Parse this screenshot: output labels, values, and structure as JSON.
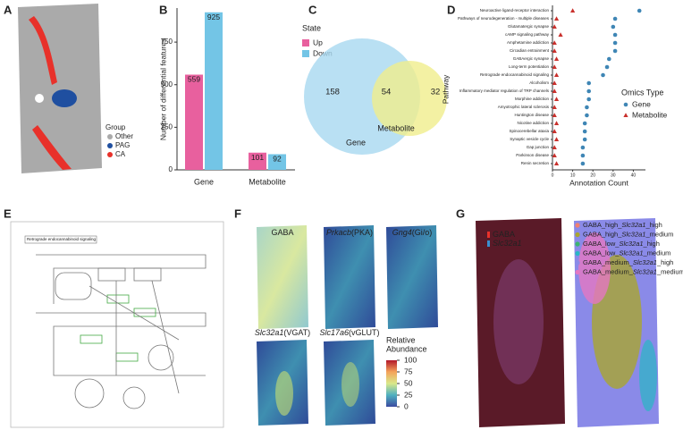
{
  "panel_labels": [
    "A",
    "B",
    "C",
    "D",
    "E",
    "F",
    "G"
  ],
  "chart_data": [
    {
      "type": "bar",
      "ylabel": "Number of differential features",
      "categories": [
        "Gene",
        "Metabolite"
      ],
      "legend_title": "State",
      "series": [
        {
          "name": "Up",
          "color": "#e8609e",
          "values": [
            559,
            101
          ]
        },
        {
          "name": "Down",
          "color": "#73c5e6",
          "values": [
            925,
            92
          ]
        }
      ],
      "ylim": [
        0,
        950
      ],
      "yticks": [
        0,
        250,
        500,
        750
      ]
    },
    {
      "type": "venn",
      "sets": [
        {
          "name": "Gene",
          "color": "#a8d8f0",
          "value": 158
        },
        {
          "name": "Metabolite",
          "color": "#f0ee8c",
          "value": 32
        }
      ],
      "intersection": 54
    },
    {
      "type": "dot",
      "xlabel": "Annotation Count",
      "ylabel": "Pathway",
      "legend_title": "Omics Type",
      "categories": [
        "Neuroactive ligand-receptor interaction",
        "Pathways of neurodegeneration - multiple diseases",
        "Glutamatergic synapse",
        "cAMP signaling pathway",
        "Amphetamine addiction",
        "Circadian entrainment",
        "GABAergic synapse",
        "Long-term potentiation",
        "Retrograde endocannabinoid signaling",
        "Alcoholism",
        "Inflammatory mediator regulation of TRP channels",
        "Morphine addiction",
        "Amyotrophic lateral sclerosis",
        "Huntington disease",
        "Nicotine addiction",
        "Spinocerebellar ataxia",
        "Synaptic vesicle cycle",
        "Gap junction",
        "Parkinson disease",
        "Renin secretion"
      ],
      "series": [
        {
          "name": "Gene",
          "color": "#3f86b5",
          "marker": "circle",
          "values": [
            43,
            31,
            30,
            31,
            31,
            31,
            28,
            27,
            25,
            18,
            18,
            18,
            17,
            17,
            16,
            16,
            16,
            15,
            15,
            15
          ]
        },
        {
          "name": "Metabolite",
          "color": "#c9302c",
          "marker": "triangle",
          "values": [
            10,
            2,
            1,
            4,
            1,
            1,
            2,
            1,
            2,
            1,
            1,
            2,
            1,
            1,
            2,
            1,
            2,
            1,
            1,
            2
          ]
        }
      ],
      "xlim": [
        0,
        46
      ],
      "xticks": [
        0,
        10,
        20,
        30,
        40
      ]
    }
  ],
  "panel_a": {
    "legend_title": "Group",
    "groups": [
      {
        "name": "Other",
        "color": "#aaaaaa"
      },
      {
        "name": "PAG",
        "color": "#1f4fa0"
      },
      {
        "name": "CA",
        "color": "#e8312a"
      }
    ]
  },
  "panel_e": {
    "title": "Retrograde endocannabinoid signaling"
  },
  "panel_f": {
    "maps": [
      {
        "label": "GABA"
      },
      {
        "gene": "Prkacb",
        "label": "(PKA)"
      },
      {
        "gene": "Gng4",
        "label": "(Gi/o)"
      },
      {
        "gene": "Slc32a1",
        "label": "(VGAT)"
      },
      {
        "gene": "Slc17a6",
        "label": "(vGLUT)"
      }
    ],
    "colorbar": {
      "title": [
        "Relative",
        "Abundance"
      ],
      "lim": [
        0,
        100
      ],
      "ticks": [
        0,
        25,
        50,
        75,
        100
      ],
      "colors": [
        "#3b4ba0",
        "#4fb0c0",
        "#d9e88a",
        "#f4a35a",
        "#b2182b"
      ]
    }
  },
  "panel_g": {
    "channels": [
      {
        "name": "GABA",
        "color": "#e8312a"
      },
      {
        "gene": "Slc32a1",
        "color": "#3a8fd0"
      }
    ],
    "clusters": [
      {
        "prefix": "GABA_high_",
        "gene": "Slc32a1",
        "suffix": "_high",
        "color": "#f08070"
      },
      {
        "prefix": "GABA_high_",
        "gene": "Slc32a1",
        "suffix": "_medium",
        "color": "#a9a530"
      },
      {
        "prefix": "GABA_low_",
        "gene": "Slc32a1",
        "suffix": "_high",
        "color": "#3cb371"
      },
      {
        "prefix": "GABA_low_",
        "gene": "Slc32a1",
        "suffix": "_medium",
        "color": "#29b6c4"
      },
      {
        "prefix": "GABA_medium_",
        "gene": "Slc32a1",
        "suffix": "_high",
        "color": "#8a8ae8"
      },
      {
        "prefix": "GABA_medium_",
        "gene": "Slc32a1",
        "suffix": "_medium",
        "color": "#e377c2"
      }
    ]
  }
}
